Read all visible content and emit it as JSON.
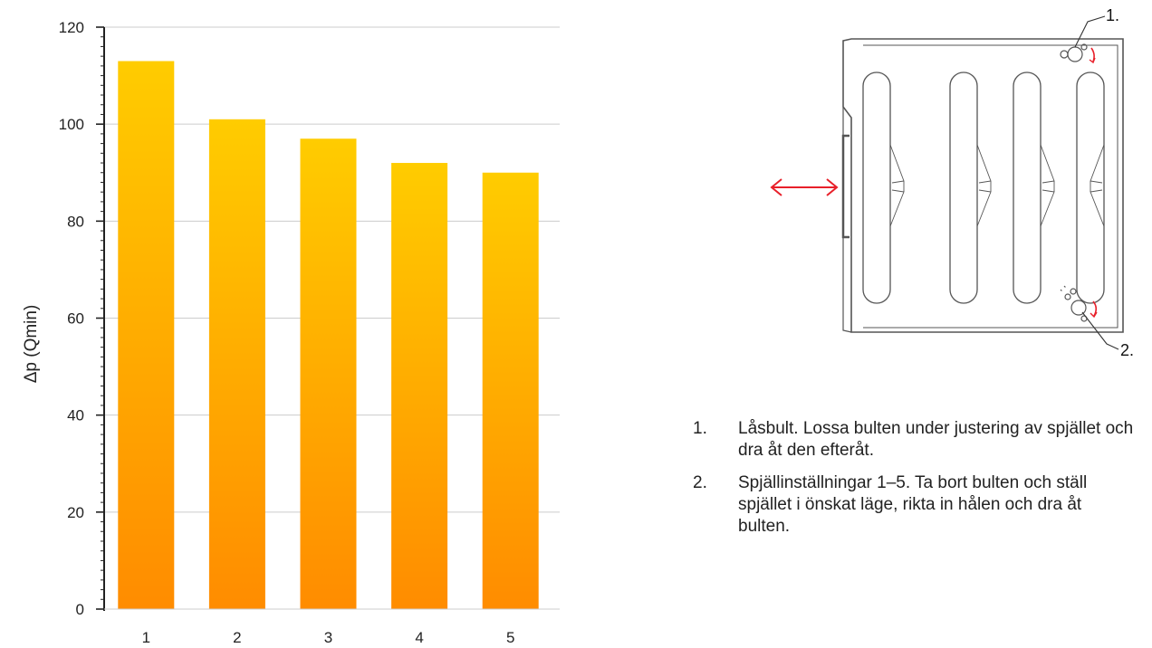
{
  "chart_data": {
    "type": "bar",
    "categories": [
      "1",
      "2",
      "3",
      "4",
      "5"
    ],
    "values": [
      113,
      101,
      97,
      92,
      90
    ],
    "ylabel": "Δp (Qmin)",
    "ylim": [
      0,
      120
    ],
    "yticks": [
      0,
      20,
      40,
      60,
      80,
      100,
      120
    ],
    "grid": true,
    "colors": {
      "bar_top": "#ffcc00",
      "bar_bottom": "#ff8c00",
      "grid": "#cccccc",
      "axis": "#222222"
    }
  },
  "diagram": {
    "callouts": [
      "1.",
      "2."
    ],
    "arrow_color": "#e8202a"
  },
  "instructions": [
    {
      "num": "1.",
      "text": "Låsbult. Lossa bulten under justering av spjället och dra åt den efteråt."
    },
    {
      "num": "2.",
      "text": "Spjällinställningar 1–5. Ta bort bulten och ställ spjället i önskat läge, rikta in hålen och dra åt bulten."
    }
  ]
}
